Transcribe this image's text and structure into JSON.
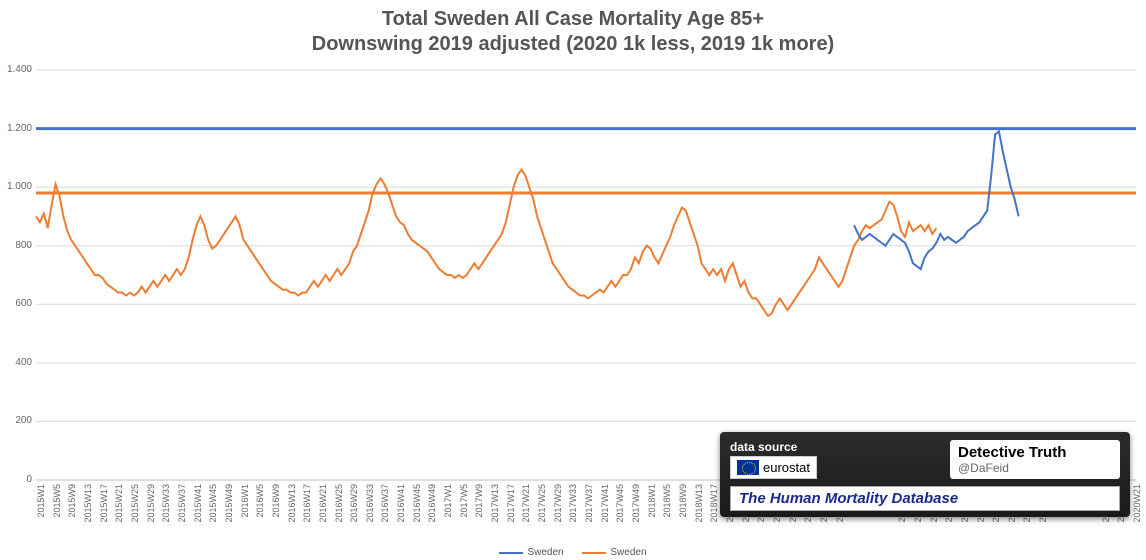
{
  "title": {
    "line1": "Total Sweden All Case Mortality Age 85+",
    "line2": "Downswing 2019 adjusted (2020 1k less, 2019 1k more)",
    "color": "#555555",
    "fontsize": 20,
    "fontweight": "bold"
  },
  "chart": {
    "type": "line",
    "background_color": "#ffffff",
    "grid_color": "#d9d9d9",
    "axis_color": "#bfbfbf",
    "ylim": [
      0,
      1400
    ],
    "ytick_step": 200,
    "ytick_labels": [
      "0",
      "200",
      "400",
      "600",
      "800",
      "1.000",
      "1.200",
      "1.400"
    ],
    "ytick_fontsize": 10,
    "ytick_color": "#666666",
    "xtick_fontsize": 9,
    "xtick_color": "#666666",
    "xtick_rotation": -90,
    "x_categories": [
      "2015W1",
      "2015W5",
      "2015W9",
      "2015W13",
      "2015W17",
      "2015W21",
      "2015W25",
      "2015W29",
      "2015W33",
      "2015W37",
      "2015W41",
      "2015W45",
      "2015W49",
      "2016W1",
      "2016W5",
      "2016W9",
      "2016W13",
      "2016W17",
      "2016W21",
      "2016W25",
      "2016W29",
      "2016W33",
      "2016W37",
      "2016W41",
      "2016W45",
      "2016W49",
      "2017W1",
      "2017W5",
      "2017W9",
      "2017W13",
      "2017W17",
      "2017W21",
      "2017W25",
      "2017W29",
      "2017W33",
      "2017W37",
      "2017W41",
      "2017W45",
      "2017W49",
      "2018W1",
      "2018W5",
      "2018W9",
      "2018W13",
      "2018W17",
      "2018W21",
      "2018W25",
      "2018W29",
      "2018W33",
      "2018W37",
      "2018W41",
      "2018W45",
      "2018W49",
      "2019W1",
      "2019W5",
      "2019W9",
      "2019W13",
      "2019W17",
      "2019W21",
      "2019W25",
      "2019W29",
      "2019W33",
      "2019W37",
      "2019W41",
      "2019W45",
      "2019W49",
      "2020W1",
      "2020W5",
      "2020W9",
      "2020W13",
      "2020W17",
      "2020W21"
    ],
    "x_step_for_ticks": 1,
    "reference_lines": [
      {
        "y": 1200,
        "color": "#4472c4",
        "width": 3
      },
      {
        "y": 980,
        "color": "#ed7d31",
        "width": 3
      }
    ],
    "series": [
      {
        "name": "Sweden",
        "color": "#ed7d31",
        "line_width": 2,
        "values": [
          900,
          880,
          910,
          860,
          940,
          1010,
          970,
          900,
          850,
          820,
          800,
          780,
          760,
          740,
          720,
          700,
          700,
          690,
          670,
          660,
          650,
          640,
          640,
          630,
          640,
          630,
          640,
          660,
          640,
          660,
          680,
          660,
          680,
          700,
          680,
          700,
          720,
          700,
          720,
          760,
          820,
          870,
          900,
          870,
          820,
          790,
          800,
          820,
          840,
          860,
          880,
          900,
          870,
          820,
          800,
          780,
          760,
          740,
          720,
          700,
          680,
          670,
          660,
          650,
          650,
          640,
          640,
          630,
          640,
          640,
          660,
          680,
          660,
          680,
          700,
          680,
          700,
          720,
          700,
          720,
          740,
          780,
          800,
          840,
          880,
          920,
          980,
          1010,
          1030,
          1010,
          980,
          940,
          900,
          880,
          870,
          840,
          820,
          810,
          800,
          790,
          780,
          760,
          740,
          720,
          710,
          700,
          700,
          690,
          700,
          690,
          700,
          720,
          740,
          720,
          740,
          760,
          780,
          800,
          820,
          840,
          880,
          940,
          1000,
          1040,
          1060,
          1040,
          1000,
          960,
          900,
          860,
          820,
          780,
          740,
          720,
          700,
          680,
          660,
          650,
          640,
          630,
          630,
          620,
          630,
          640,
          650,
          640,
          660,
          680,
          660,
          680,
          700,
          700,
          720,
          760,
          740,
          780,
          800,
          790,
          760,
          740,
          770,
          800,
          830,
          870,
          900,
          930,
          920,
          880,
          840,
          800,
          740,
          720,
          700,
          720,
          700,
          720,
          680,
          720,
          740,
          700,
          660,
          680,
          640,
          620,
          620,
          600,
          580,
          560,
          570,
          600,
          620,
          600,
          580,
          600,
          620,
          640,
          660,
          680,
          700,
          720,
          760,
          740,
          720,
          700,
          680,
          660,
          680,
          720,
          760,
          800,
          820,
          850,
          870,
          860,
          870,
          880,
          890,
          920,
          950,
          940,
          900,
          850,
          830,
          880,
          850,
          860,
          870,
          850,
          870,
          840,
          860
        ]
      },
      {
        "name": "Sweden",
        "color": "#4472c4",
        "line_width": 2,
        "start_index": 209,
        "values": [
          870,
          840,
          820,
          830,
          840,
          830,
          820,
          810,
          800,
          820,
          840,
          830,
          820,
          810,
          780,
          740,
          730,
          720,
          760,
          780,
          790,
          810,
          840,
          820,
          830,
          820,
          810,
          820,
          830,
          850,
          860,
          870,
          880,
          900,
          920,
          1040,
          1180,
          1190,
          1120,
          1060,
          1000,
          960,
          900
        ]
      }
    ],
    "total_x_points": 282
  },
  "legend": {
    "items": [
      {
        "label": "Sweden",
        "color": "#4472c4"
      },
      {
        "label": "Sweden",
        "color": "#ed7d31"
      }
    ],
    "fontsize": 10,
    "color": "#555555"
  },
  "source_box": {
    "label": "data source",
    "eurostat": "eurostat",
    "detective_title": "Detective Truth",
    "detective_handle": "@DaFeid",
    "hmd": "The Human Mortality Database",
    "bg_color": "#2c2c2c",
    "text_color": "#ffffff"
  }
}
